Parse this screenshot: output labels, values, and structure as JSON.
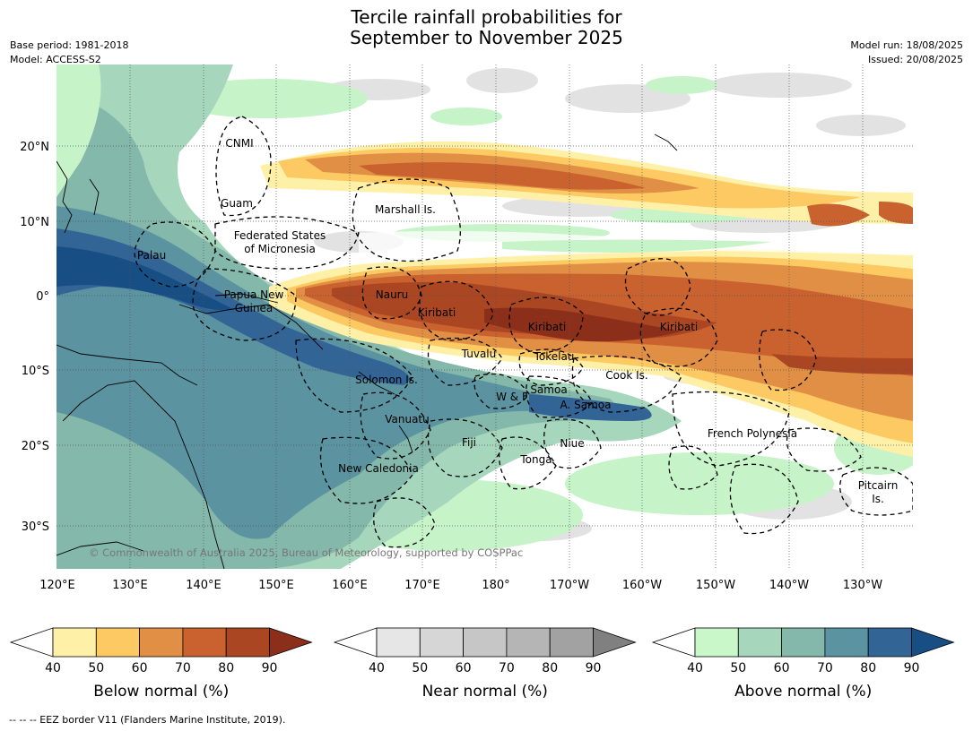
{
  "title": {
    "line1": "Tercile rainfall probabilities for",
    "line2": "September to November 2025"
  },
  "meta": {
    "base_period": "Base period: 1981-2018",
    "model": "Model: ACCESS-S2",
    "model_run": "Model run: 18/08/2025",
    "issued": "Issued: 20/08/2025"
  },
  "map": {
    "lat_labels": [
      "20°N",
      "10°N",
      "0°",
      "10°S",
      "20°S",
      "30°S"
    ],
    "lon_labels": [
      "120°E",
      "130°E",
      "140°E",
      "150°E",
      "160°E",
      "170°E",
      "180°",
      "170°W",
      "160°W",
      "150°W",
      "140°W",
      "130°W"
    ],
    "copyright": "© Commonwealth of Australia 2025, Bureau of Meteorology, supported by COSPPac",
    "regions": [
      "CNMI",
      "Guam",
      "Marshall Is.",
      "Federated States",
      "of Micronesia",
      "Palau",
      "Papua New",
      "Guinea",
      "Nauru",
      "Kiribati",
      "Kiribati",
      "Kiribati",
      "Tuvalu",
      "Tokelau",
      "Solomon Is.",
      "Samoa",
      "W & F",
      "A. Samoa",
      "Cook Is.",
      "Vanuatu",
      "Fiji",
      "Niue",
      "French Polynesia",
      "Tonga",
      "New Caledonia",
      "Pitcairn",
      "Is."
    ]
  },
  "colorbars": [
    {
      "name": "Below normal (%)",
      "ticks": [
        "40",
        "50",
        "60",
        "70",
        "80",
        "90"
      ],
      "colors": [
        "#ffffff",
        "#fff0a8",
        "#fdc962",
        "#e08f44",
        "#c9622f",
        "#ab4623",
        "#8c2f1a"
      ]
    },
    {
      "name": "Near normal (%)",
      "ticks": [
        "40",
        "50",
        "60",
        "70",
        "80",
        "90"
      ],
      "colors": [
        "#ffffff",
        "#e6e6e6",
        "#d6d6d6",
        "#c6c6c6",
        "#b5b5b5",
        "#a2a2a2",
        "#808080"
      ]
    },
    {
      "name": "Above normal (%)",
      "ticks": [
        "40",
        "50",
        "60",
        "70",
        "80",
        "90"
      ],
      "colors": [
        "#ffffff",
        "#c9f7ca",
        "#a6d6bb",
        "#84b8aa",
        "#5b93a0",
        "#326496",
        "#174f84"
      ]
    }
  ],
  "footer": "--  --  -- EEZ border V11 (Flanders Marine Institute, 2019)."
}
